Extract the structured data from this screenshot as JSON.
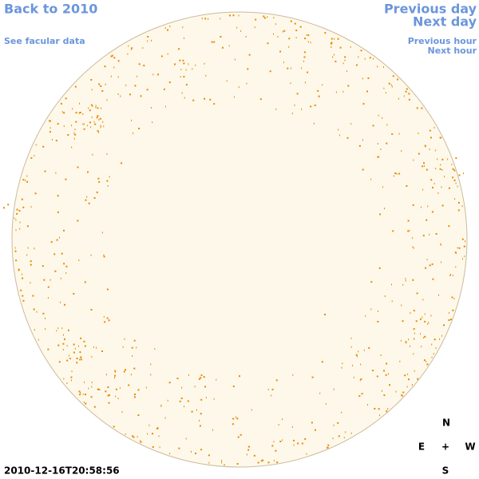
{
  "links": {
    "back": "Back to 2010",
    "facular": "See facular data",
    "previous_day": "Previous day",
    "next_day": "Next day",
    "previous_hour": "Previous hour",
    "next_hour": "Next hour"
  },
  "compass": {
    "north": "N",
    "east": "E",
    "center": "+",
    "west": "W",
    "south": "S"
  },
  "timestamp": "2010-12-16T20:58:56"
}
